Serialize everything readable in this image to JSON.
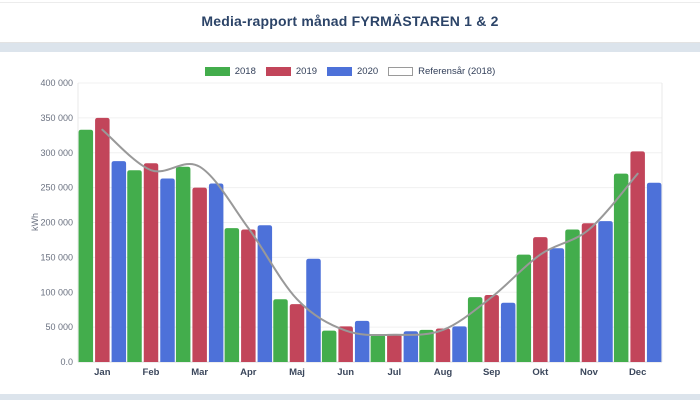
{
  "page": {
    "title": "Media-rapport månad FYRMÄSTAREN 1 & 2"
  },
  "colors": {
    "title": "#2c4468",
    "divider_strip": "#dce4ec",
    "grid_line": "#f0f0f0",
    "baseline": "#dcdcdc",
    "axis_border": "#e9e9e9",
    "tick_label": "#6a7180",
    "month_label": "#3b475c",
    "series_2018": "#43ad4c",
    "series_2019": "#c2455a",
    "series_2020": "#4d71d9",
    "reference_line": "#999999",
    "reference_swatch_border": "#9a9a9a"
  },
  "chart_data": {
    "type": "bar",
    "title": "Media-rapport månad FYRMÄSTAREN 1 & 2",
    "ylabel": "kWh",
    "xlabel": "",
    "ylim": [
      0,
      400000
    ],
    "ytick_step": 50000,
    "ytick_labels": [
      "0.0",
      "50 000",
      "100 000",
      "150 000",
      "200 000",
      "250 000",
      "300 000",
      "350 000",
      "400 000"
    ],
    "grid": true,
    "legend_position": "top",
    "categories": [
      "Jan",
      "Feb",
      "Mar",
      "Apr",
      "Maj",
      "Jun",
      "Jul",
      "Aug",
      "Sep",
      "Okt",
      "Nov",
      "Dec"
    ],
    "series": [
      {
        "name": "2018",
        "type": "bar",
        "color": "#43ad4c",
        "values": [
          333000,
          275000,
          280000,
          192000,
          90000,
          45000,
          39000,
          46000,
          93000,
          154000,
          190000,
          270000
        ]
      },
      {
        "name": "2019",
        "type": "bar",
        "color": "#c2455a",
        "values": [
          350000,
          285000,
          250000,
          190000,
          83000,
          51000,
          40000,
          48000,
          96000,
          179000,
          199000,
          302000
        ]
      },
      {
        "name": "2020",
        "type": "bar",
        "color": "#4d71d9",
        "values": [
          288000,
          263000,
          256000,
          196000,
          148000,
          59000,
          44000,
          51000,
          85000,
          163000,
          202000,
          257000
        ]
      },
      {
        "name": "Referensår (2018)",
        "type": "line",
        "color": "#999999",
        "values": [
          333000,
          275000,
          280000,
          192000,
          90000,
          45000,
          39000,
          46000,
          93000,
          154000,
          190000,
          270000
        ]
      }
    ]
  }
}
